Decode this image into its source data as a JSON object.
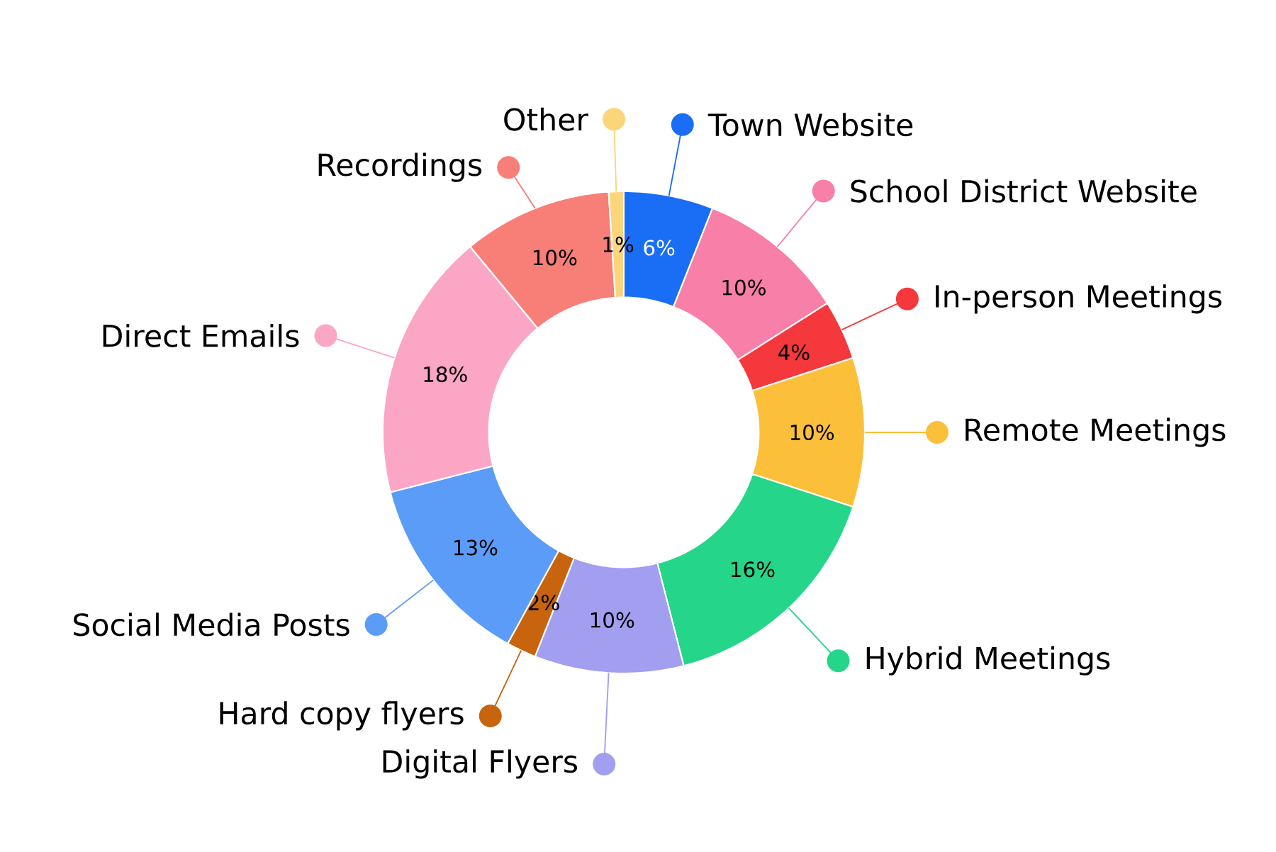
{
  "chart_data": {
    "type": "donut",
    "legend": "bottom left",
    "categories": [
      "Town Website",
      "School District Website",
      "In-person Meetings",
      "Remote Meetings",
      "Hybrid Meetings",
      "Digital Flyers",
      "Hard copy flyers",
      "Social Media Posts",
      "Direct Emails",
      "Recordings",
      "Other"
    ],
    "values": [
      6,
      10,
      4,
      10,
      16,
      10,
      2,
      13,
      18,
      10,
      1
    ],
    "value_labels": [
      "6%",
      "10%",
      "4%",
      "10%",
      "16%",
      "10%",
      "2%",
      "13%",
      "18%",
      "10%",
      "1%"
    ],
    "colors": [
      "#1a6ef5",
      "#f77fa8",
      "#f5383b",
      "#fbbf3a",
      "#25d58a",
      "#a29ef0",
      "#c8630e",
      "#5b9cf8",
      "#fba6c4",
      "#f87e78",
      "#fbd57a"
    ]
  }
}
